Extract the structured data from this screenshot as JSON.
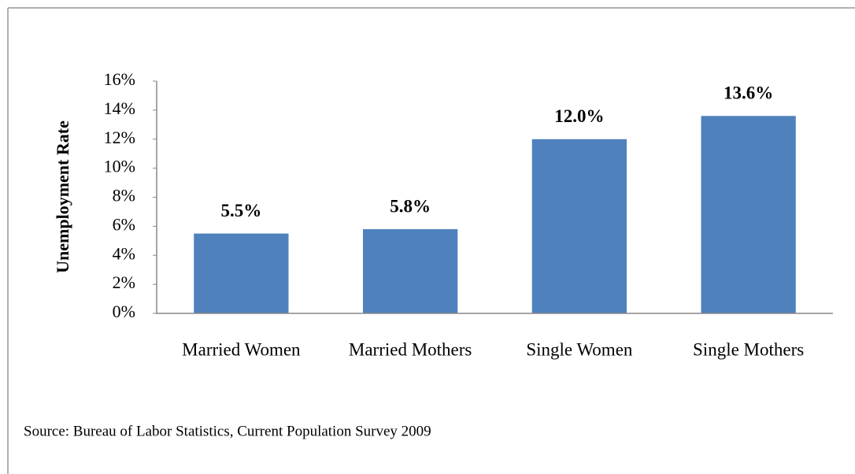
{
  "chart_data": {
    "type": "bar",
    "y_label": "Unemployment Rate",
    "categories": [
      "Married Women",
      "Married Mothers",
      "Single Women",
      "Single Mothers"
    ],
    "values": [
      5.5,
      5.8,
      12.0,
      13.6
    ],
    "value_labels": [
      "5.5%",
      "5.8%",
      "12.0%",
      "13.6%"
    ],
    "color": "#4f81bd",
    "ylim": [
      0,
      16
    ],
    "yticks": [
      {
        "value": 0,
        "label": "0%"
      },
      {
        "value": 2,
        "label": "2%"
      },
      {
        "value": 4,
        "label": "4%"
      },
      {
        "value": 6,
        "label": "6%"
      },
      {
        "value": 8,
        "label": "8%"
      },
      {
        "value": 10,
        "label": "10%"
      },
      {
        "value": 12,
        "label": "12%"
      },
      {
        "value": 14,
        "label": "14%"
      },
      {
        "value": 16,
        "label": "16%"
      }
    ],
    "grid": false,
    "source": "Source: Bureau of Labor Statistics, Current Population Survey 2009"
  }
}
